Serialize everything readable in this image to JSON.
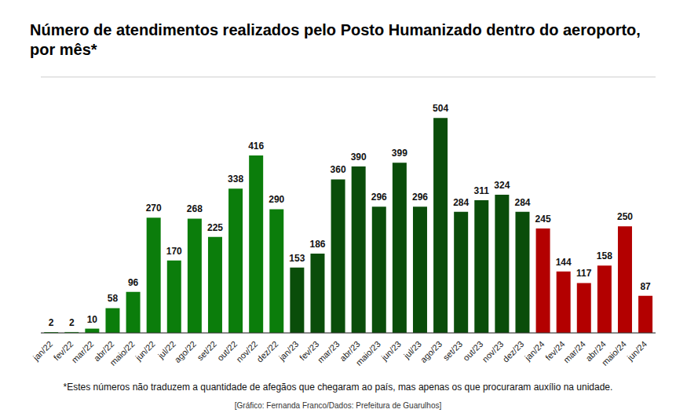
{
  "chart_data": {
    "type": "bar",
    "title": "Número de atendimentos realizados pelo Posto Humanizado dentro do aeroporto, por mês*",
    "footnote": "*Estes números não traduzem a quantidade de afegãos que chegaram ao país, mas apenas os que procuraram auxílio na unidade.",
    "source": "[Gráfico: Fernanda Franco/Dados: Prefeitura de Guarulhos]",
    "categories": [
      "jan/22",
      "fev/22",
      "mar/22",
      "abr/22",
      "maio/22",
      "jun/22",
      "jul/22",
      "ago/22",
      "set/22",
      "out/22",
      "nov/22",
      "dez/22",
      "jan/23",
      "fev/23",
      "mar/23",
      "abr/23",
      "maio/23",
      "jun/23",
      "jul/23",
      "ago/23",
      "set/23",
      "out/23",
      "nov/23",
      "dez/23",
      "jan/24",
      "fev/24",
      "mar/24",
      "abr/24",
      "maio/24",
      "jun/24"
    ],
    "values": [
      2,
      2,
      10,
      58,
      96,
      270,
      170,
      268,
      225,
      338,
      416,
      290,
      153,
      186,
      360,
      390,
      296,
      399,
      296,
      504,
      284,
      311,
      324,
      284,
      245,
      144,
      117,
      158,
      250,
      87
    ],
    "colors": [
      "#0b7d0b",
      "#0b7d0b",
      "#0b7d0b",
      "#0b7d0b",
      "#0b7d0b",
      "#0b7d0b",
      "#0b7d0b",
      "#0b7d0b",
      "#0b7d0b",
      "#0b7d0b",
      "#0b7d0b",
      "#0b7d0b",
      "#0a4d0a",
      "#0a4d0a",
      "#0a4d0a",
      "#0a4d0a",
      "#0a4d0a",
      "#0a4d0a",
      "#0a4d0a",
      "#0a4d0a",
      "#0a4d0a",
      "#0a4d0a",
      "#0a4d0a",
      "#0a4d0a",
      "#b30000",
      "#b30000",
      "#b30000",
      "#b30000",
      "#b30000",
      "#b30000"
    ],
    "ylim": [
      0,
      600
    ],
    "yticks": [
      0,
      200,
      400,
      600
    ],
    "grid": true,
    "data_labels": true,
    "tick_labels": "x"
  }
}
